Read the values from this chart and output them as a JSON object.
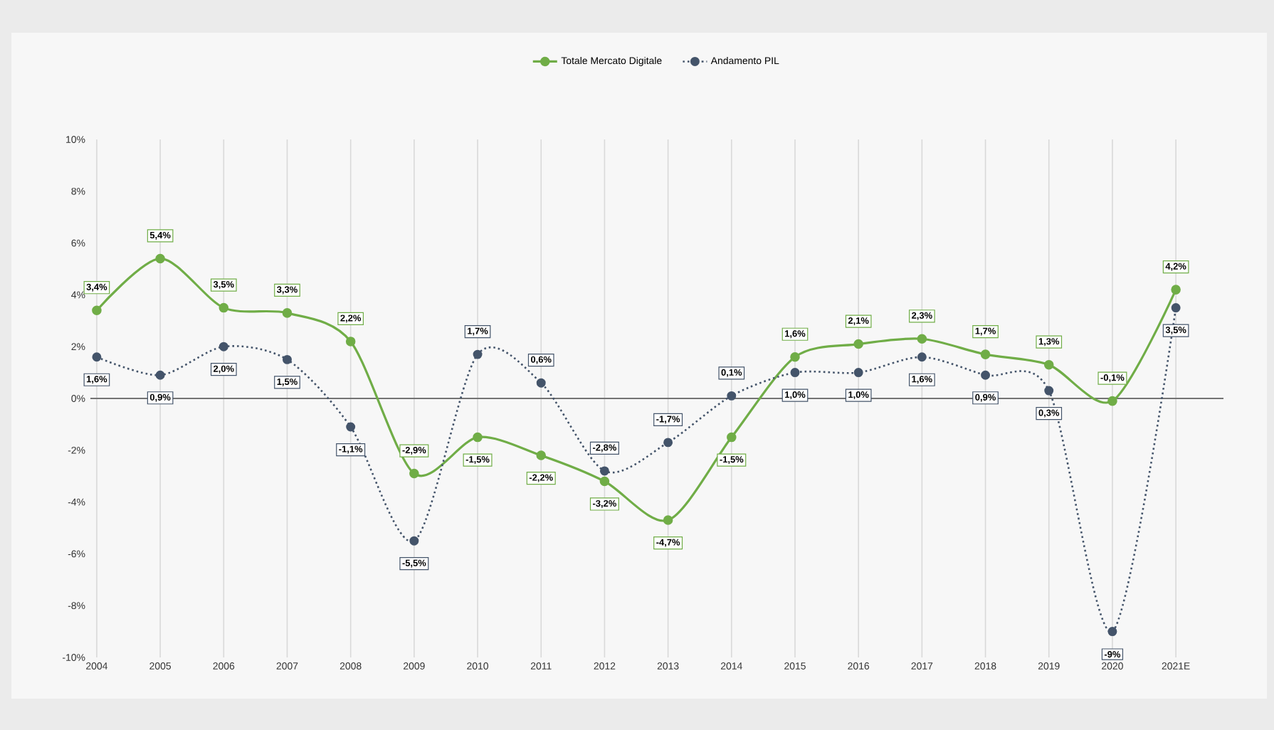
{
  "chart_data": {
    "type": "line",
    "categories": [
      "2004",
      "2005",
      "2006",
      "2007",
      "2008",
      "2009",
      "2010",
      "2011",
      "2012",
      "2013",
      "2014",
      "2015",
      "2016",
      "2017",
      "2018",
      "2019",
      "2020",
      "2021E"
    ],
    "series": [
      {
        "name": "Totale Mercato Digitale",
        "color": "#70ad47",
        "line_style": "solid",
        "values": [
          3.4,
          5.4,
          3.5,
          3.3,
          2.2,
          -2.9,
          -1.5,
          -2.2,
          -3.2,
          -4.7,
          -1.5,
          1.6,
          2.1,
          2.3,
          1.7,
          1.3,
          -0.1,
          4.2
        ],
        "value_labels": [
          "3,4%",
          "5,4%",
          "3,5%",
          "3,3%",
          "2,2%",
          "-2,9%",
          "-1,5%",
          "-2,2%",
          "-3,2%",
          "-4,7%",
          "-1,5%",
          "1,6%",
          "2,1%",
          "2,3%",
          "1,7%",
          "1,3%",
          "-0,1%",
          "4,2%"
        ]
      },
      {
        "name": "Andamento PIL",
        "color": "#44546a",
        "line_style": "dotted",
        "values": [
          1.6,
          0.9,
          2.0,
          1.5,
          -1.1,
          -5.5,
          1.7,
          0.6,
          -2.8,
          -1.7,
          0.1,
          1.0,
          1.0,
          1.6,
          0.9,
          0.3,
          -9,
          3.5
        ],
        "value_labels": [
          "1,6%",
          "0,9%",
          "2,0%",
          "1,5%",
          "-1,1%",
          "-5,5%",
          "1,7%",
          "0,6%",
          "-2,8%",
          "-1,7%",
          "0,1%",
          "1,0%",
          "1,0%",
          "1,6%",
          "0,9%",
          "0,3%",
          "-9%",
          "3,5%"
        ]
      }
    ],
    "ylim": [
      -10,
      10
    ],
    "yticks": [
      {
        "value": -10,
        "label": "-10%"
      },
      {
        "value": -8,
        "label": "-8%"
      },
      {
        "value": -6,
        "label": "-6%"
      },
      {
        "value": -4,
        "label": "-4%"
      },
      {
        "value": -2,
        "label": "-2%"
      },
      {
        "value": 0,
        "label": "0%"
      },
      {
        "value": 2,
        "label": "2%"
      },
      {
        "value": 4,
        "label": "4%"
      },
      {
        "value": 6,
        "label": "6%"
      },
      {
        "value": 8,
        "label": "8%"
      },
      {
        "value": 10,
        "label": "10%"
      }
    ],
    "grid": "x",
    "legend": "top",
    "marker": "circle"
  }
}
